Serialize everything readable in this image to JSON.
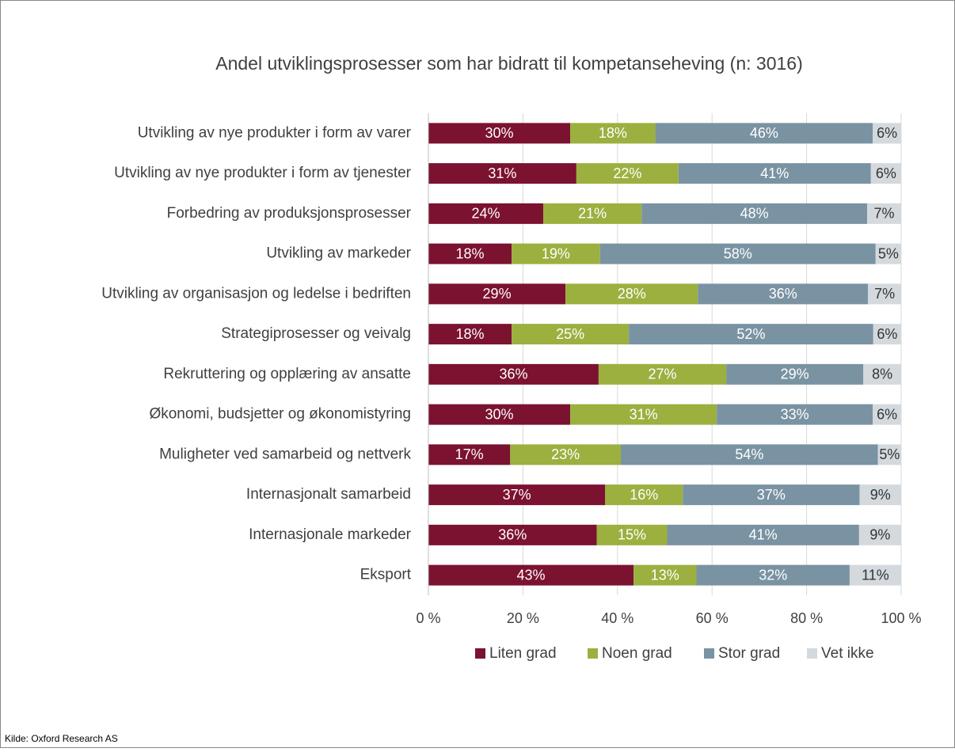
{
  "chart_data": {
    "type": "stacked_barh",
    "title": "Andel utviklingsprosesser som har bidratt til kompetanseheving (n: 3016)",
    "note": "Kilde: Oxford Research AS",
    "categories": [
      "Utvikling av nye produkter i form av varer",
      "Utvikling av nye produkter i form av tjenester",
      "Forbedring av produksjonsprosesser",
      "Utvikling av markeder",
      "Utvikling av organisasjon og ledelse i bedriften",
      "Strategiprosesser og veivalg",
      "Rekruttering og opplæring av ansatte",
      "Økonomi, budsjetter og økonomistyring",
      "Muligheter ved samarbeid og nettverk",
      "Internasjonalt samarbeid",
      "Internasjonale markeder",
      "Eksport"
    ],
    "series": [
      {
        "name": "Liten grad",
        "color": "#7b1230",
        "label_color": "#ffffff",
        "values": [
          30,
          31.3,
          24.3,
          17.6,
          29,
          17.6,
          36,
          30,
          17.3,
          37.4,
          35.6,
          43.4
        ],
        "value_labels": [
          "30%",
          "31%",
          "24%",
          "18%",
          "29%",
          "18%",
          "36%",
          "30%",
          "17%",
          "37%",
          "36%",
          "43%"
        ]
      },
      {
        "name": "Noen grad",
        "color": "#9bb03f",
        "label_color": "#ffffff",
        "values": [
          18,
          21.6,
          20.8,
          18.7,
          28,
          24.8,
          27,
          31,
          23.4,
          16.4,
          14.9,
          13.3
        ],
        "value_labels": [
          "18%",
          "22%",
          "21%",
          "19%",
          "28%",
          "25%",
          "27%",
          "31%",
          "23%",
          "16%",
          "15%",
          "13%"
        ]
      },
      {
        "name": "Stor grad",
        "color": "#7a93a3",
        "label_color": "#ffffff",
        "values": [
          46,
          40.7,
          47.7,
          58.3,
          36,
          51.7,
          29,
          33,
          54.4,
          37.4,
          40.6,
          32.4
        ],
        "value_labels": [
          "46%",
          "41%",
          "48%",
          "58%",
          "36%",
          "52%",
          "29%",
          "33%",
          "54%",
          "37%",
          "41%",
          "32%"
        ]
      },
      {
        "name": "Vet ikke",
        "color": "#d4d9de",
        "label_color": "#333333",
        "values": [
          6,
          6.4,
          7.2,
          5.4,
          7,
          5.9,
          8,
          6,
          4.9,
          8.8,
          8.9,
          10.9
        ],
        "value_labels": [
          "6%",
          "6%",
          "7%",
          "5%",
          "7%",
          "6%",
          "8%",
          "6%",
          "5%",
          "9%",
          "9%",
          "11%"
        ]
      }
    ],
    "xlim": [
      0,
      100
    ],
    "xticks": [
      {
        "value": 0,
        "label": "0 %"
      },
      {
        "value": 20,
        "label": "20 %"
      },
      {
        "value": 40,
        "label": "40 %"
      },
      {
        "value": 60,
        "label": "60 %"
      },
      {
        "value": 80,
        "label": "80 %"
      },
      {
        "value": 100,
        "label": "100 %"
      }
    ],
    "grid": true,
    "legend": "bottom"
  }
}
